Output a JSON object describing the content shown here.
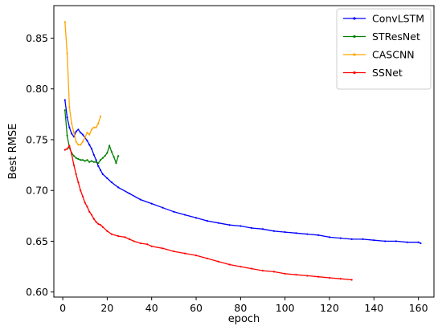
{
  "chart_data": {
    "type": "line",
    "title": "",
    "xlabel": "epoch",
    "ylabel": "Best RMSE",
    "xlim": [
      -4,
      167
    ],
    "ylim": [
      0.595,
      0.882
    ],
    "xticks": [
      0,
      20,
      40,
      60,
      80,
      100,
      120,
      140,
      160
    ],
    "yticks": [
      0.6,
      0.65,
      0.7,
      0.75,
      0.8,
      0.85
    ],
    "xtick_labels": [
      "0",
      "20",
      "40",
      "60",
      "80",
      "100",
      "120",
      "140",
      "160"
    ],
    "ytick_labels": [
      "0.60",
      "0.65",
      "0.70",
      "0.75",
      "0.80",
      "0.85"
    ],
    "grid": false,
    "legend_position": "top-right",
    "series": [
      {
        "name": "ConvLSTM",
        "color": "#0000ff",
        "points": [
          [
            1,
            0.789
          ],
          [
            2,
            0.772
          ],
          [
            3,
            0.762
          ],
          [
            4,
            0.756
          ],
          [
            5,
            0.753
          ],
          [
            6,
            0.758
          ],
          [
            7,
            0.76
          ],
          [
            8,
            0.757
          ],
          [
            9,
            0.755
          ],
          [
            10,
            0.752
          ],
          [
            11,
            0.749
          ],
          [
            12,
            0.745
          ],
          [
            13,
            0.741
          ],
          [
            14,
            0.735
          ],
          [
            15,
            0.73
          ],
          [
            16,
            0.724
          ],
          [
            17,
            0.72
          ],
          [
            18,
            0.716
          ],
          [
            20,
            0.712
          ],
          [
            22,
            0.708
          ],
          [
            25,
            0.703
          ],
          [
            30,
            0.697
          ],
          [
            35,
            0.691
          ],
          [
            40,
            0.687
          ],
          [
            45,
            0.683
          ],
          [
            50,
            0.679
          ],
          [
            55,
            0.676
          ],
          [
            60,
            0.673
          ],
          [
            65,
            0.67
          ],
          [
            70,
            0.668
          ],
          [
            75,
            0.666
          ],
          [
            80,
            0.665
          ],
          [
            85,
            0.663
          ],
          [
            90,
            0.662
          ],
          [
            95,
            0.66
          ],
          [
            100,
            0.659
          ],
          [
            105,
            0.658
          ],
          [
            110,
            0.657
          ],
          [
            115,
            0.656
          ],
          [
            120,
            0.654
          ],
          [
            125,
            0.653
          ],
          [
            130,
            0.652
          ],
          [
            135,
            0.652
          ],
          [
            140,
            0.651
          ],
          [
            145,
            0.65
          ],
          [
            150,
            0.65
          ],
          [
            155,
            0.649
          ],
          [
            160,
            0.649
          ],
          [
            161,
            0.648
          ]
        ]
      },
      {
        "name": "STResNet",
        "color": "#008000",
        "points": [
          [
            1,
            0.779
          ],
          [
            2,
            0.754
          ],
          [
            3,
            0.742
          ],
          [
            4,
            0.737
          ],
          [
            5,
            0.734
          ],
          [
            6,
            0.732
          ],
          [
            7,
            0.731
          ],
          [
            8,
            0.73
          ],
          [
            9,
            0.73
          ],
          [
            10,
            0.729
          ],
          [
            11,
            0.73
          ],
          [
            12,
            0.728
          ],
          [
            13,
            0.729
          ],
          [
            14,
            0.728
          ],
          [
            15,
            0.728
          ],
          [
            16,
            0.727
          ],
          [
            17,
            0.73
          ],
          [
            18,
            0.732
          ],
          [
            19,
            0.734
          ],
          [
            20,
            0.737
          ],
          [
            21,
            0.744
          ],
          [
            22,
            0.738
          ],
          [
            23,
            0.733
          ],
          [
            24,
            0.727
          ],
          [
            25,
            0.734
          ]
        ]
      },
      {
        "name": "CASCNN",
        "color": "#ffa500",
        "points": [
          [
            1,
            0.866
          ],
          [
            2,
            0.835
          ],
          [
            3,
            0.782
          ],
          [
            4,
            0.766
          ],
          [
            5,
            0.757
          ],
          [
            6,
            0.748
          ],
          [
            7,
            0.745
          ],
          [
            8,
            0.745
          ],
          [
            9,
            0.748
          ],
          [
            10,
            0.752
          ],
          [
            11,
            0.757
          ],
          [
            12,
            0.755
          ],
          [
            13,
            0.76
          ],
          [
            14,
            0.762
          ],
          [
            15,
            0.762
          ],
          [
            16,
            0.766
          ],
          [
            17,
            0.773
          ]
        ]
      },
      {
        "name": "SSNet",
        "color": "#ff0000",
        "points": [
          [
            1,
            0.74
          ],
          [
            2,
            0.741
          ],
          [
            3,
            0.744
          ],
          [
            4,
            0.736
          ],
          [
            5,
            0.725
          ],
          [
            6,
            0.716
          ],
          [
            7,
            0.708
          ],
          [
            8,
            0.7
          ],
          [
            9,
            0.694
          ],
          [
            10,
            0.688
          ],
          [
            11,
            0.684
          ],
          [
            12,
            0.679
          ],
          [
            13,
            0.676
          ],
          [
            14,
            0.672
          ],
          [
            15,
            0.669
          ],
          [
            16,
            0.667
          ],
          [
            17,
            0.666
          ],
          [
            18,
            0.664
          ],
          [
            20,
            0.66
          ],
          [
            22,
            0.657
          ],
          [
            25,
            0.655
          ],
          [
            28,
            0.654
          ],
          [
            30,
            0.652
          ],
          [
            32,
            0.65
          ],
          [
            35,
            0.648
          ],
          [
            38,
            0.647
          ],
          [
            40,
            0.645
          ],
          [
            45,
            0.643
          ],
          [
            50,
            0.64
          ],
          [
            55,
            0.638
          ],
          [
            60,
            0.636
          ],
          [
            65,
            0.633
          ],
          [
            70,
            0.63
          ],
          [
            75,
            0.627
          ],
          [
            80,
            0.625
          ],
          [
            85,
            0.623
          ],
          [
            90,
            0.621
          ],
          [
            95,
            0.62
          ],
          [
            100,
            0.618
          ],
          [
            105,
            0.617
          ],
          [
            110,
            0.616
          ],
          [
            115,
            0.615
          ],
          [
            120,
            0.614
          ],
          [
            125,
            0.613
          ],
          [
            130,
            0.612
          ]
        ]
      }
    ]
  }
}
